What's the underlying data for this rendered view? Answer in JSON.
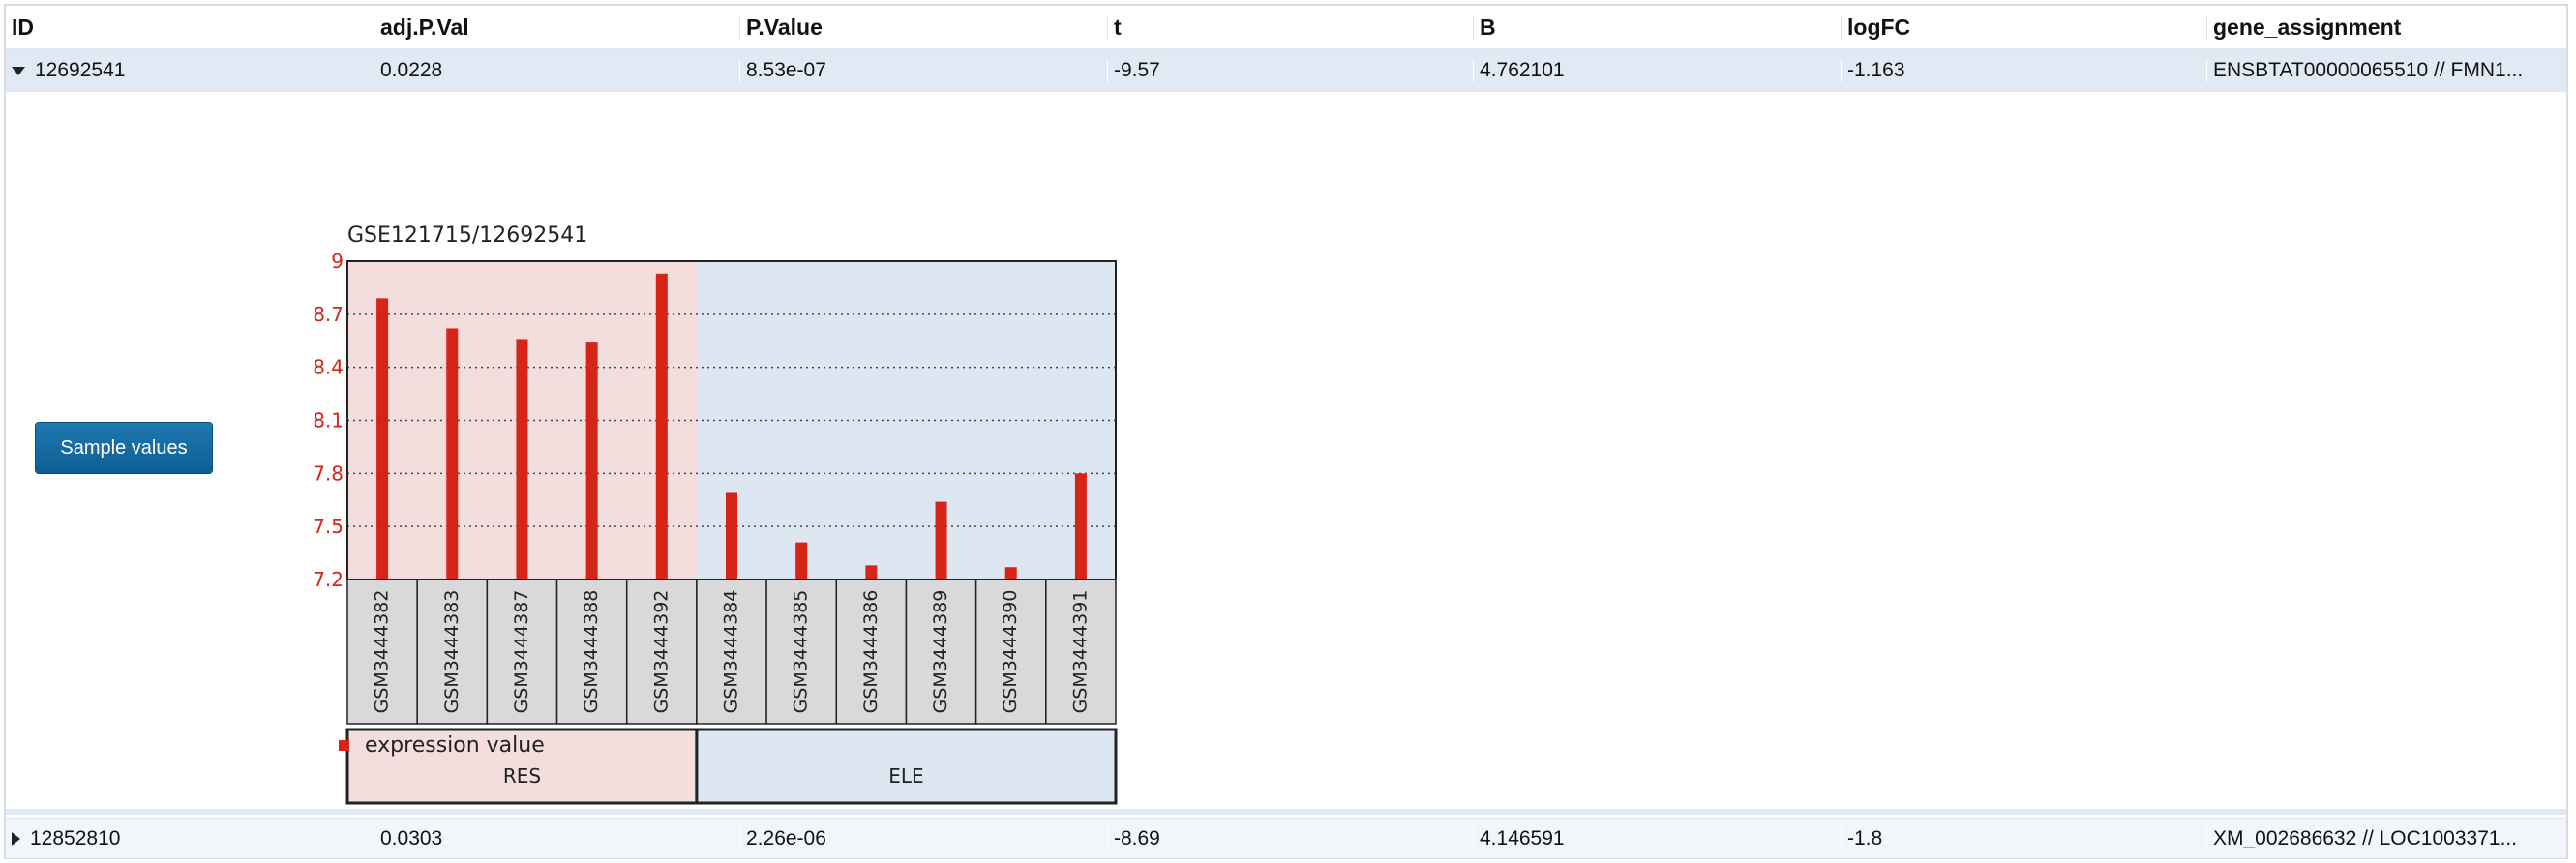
{
  "table": {
    "columns": [
      "ID",
      "adj.P.Val",
      "P.Value",
      "t",
      "B",
      "logFC",
      "gene_assignment"
    ],
    "rows": [
      {
        "expanded": true,
        "id": "12692541",
        "adj_p_val": "0.0228",
        "p_value": "8.53e-07",
        "t": "-9.57",
        "b": "4.762101",
        "logfc": "-1.163",
        "gene_assignment": "ENSBTAT00000065510 // FMN1..."
      },
      {
        "expanded": false,
        "id": "12852810",
        "adj_p_val": "0.0303",
        "p_value": "2.26e-06",
        "t": "-8.69",
        "b": "4.146591",
        "logfc": "-1.8",
        "gene_assignment": "XM_002686632 // LOC1003371..."
      }
    ]
  },
  "detail": {
    "sample_values_label": "Sample values"
  },
  "chart_data": {
    "type": "bar",
    "title": "GSE121715/12692541",
    "categories": [
      "GSM3444382",
      "GSM3444383",
      "GSM3444387",
      "GSM3444388",
      "GSM3444392",
      "GSM3444384",
      "GSM3444385",
      "GSM3444386",
      "GSM3444389",
      "GSM3444390",
      "GSM3444391"
    ],
    "groups": [
      "RES",
      "RES",
      "RES",
      "RES",
      "RES",
      "ELE",
      "ELE",
      "ELE",
      "ELE",
      "ELE",
      "ELE"
    ],
    "group_labels": [
      "RES",
      "ELE"
    ],
    "series": [
      {
        "name": "expression value",
        "values": [
          8.79,
          8.62,
          8.56,
          8.54,
          8.93,
          7.69,
          7.41,
          7.28,
          7.64,
          7.27,
          7.8
        ]
      }
    ],
    "ylim": [
      7.2,
      9.0
    ],
    "yticks": [
      "7.2",
      "7.5",
      "7.8",
      "8.1",
      "8.4",
      "8.7",
      "9"
    ],
    "grid": true,
    "legend_position": "bottom-left",
    "colors": {
      "bar": "#d62518",
      "res_bg": "#f3dddd",
      "ele_bg": "#dde7f2",
      "axis_text": "#d62518"
    }
  }
}
